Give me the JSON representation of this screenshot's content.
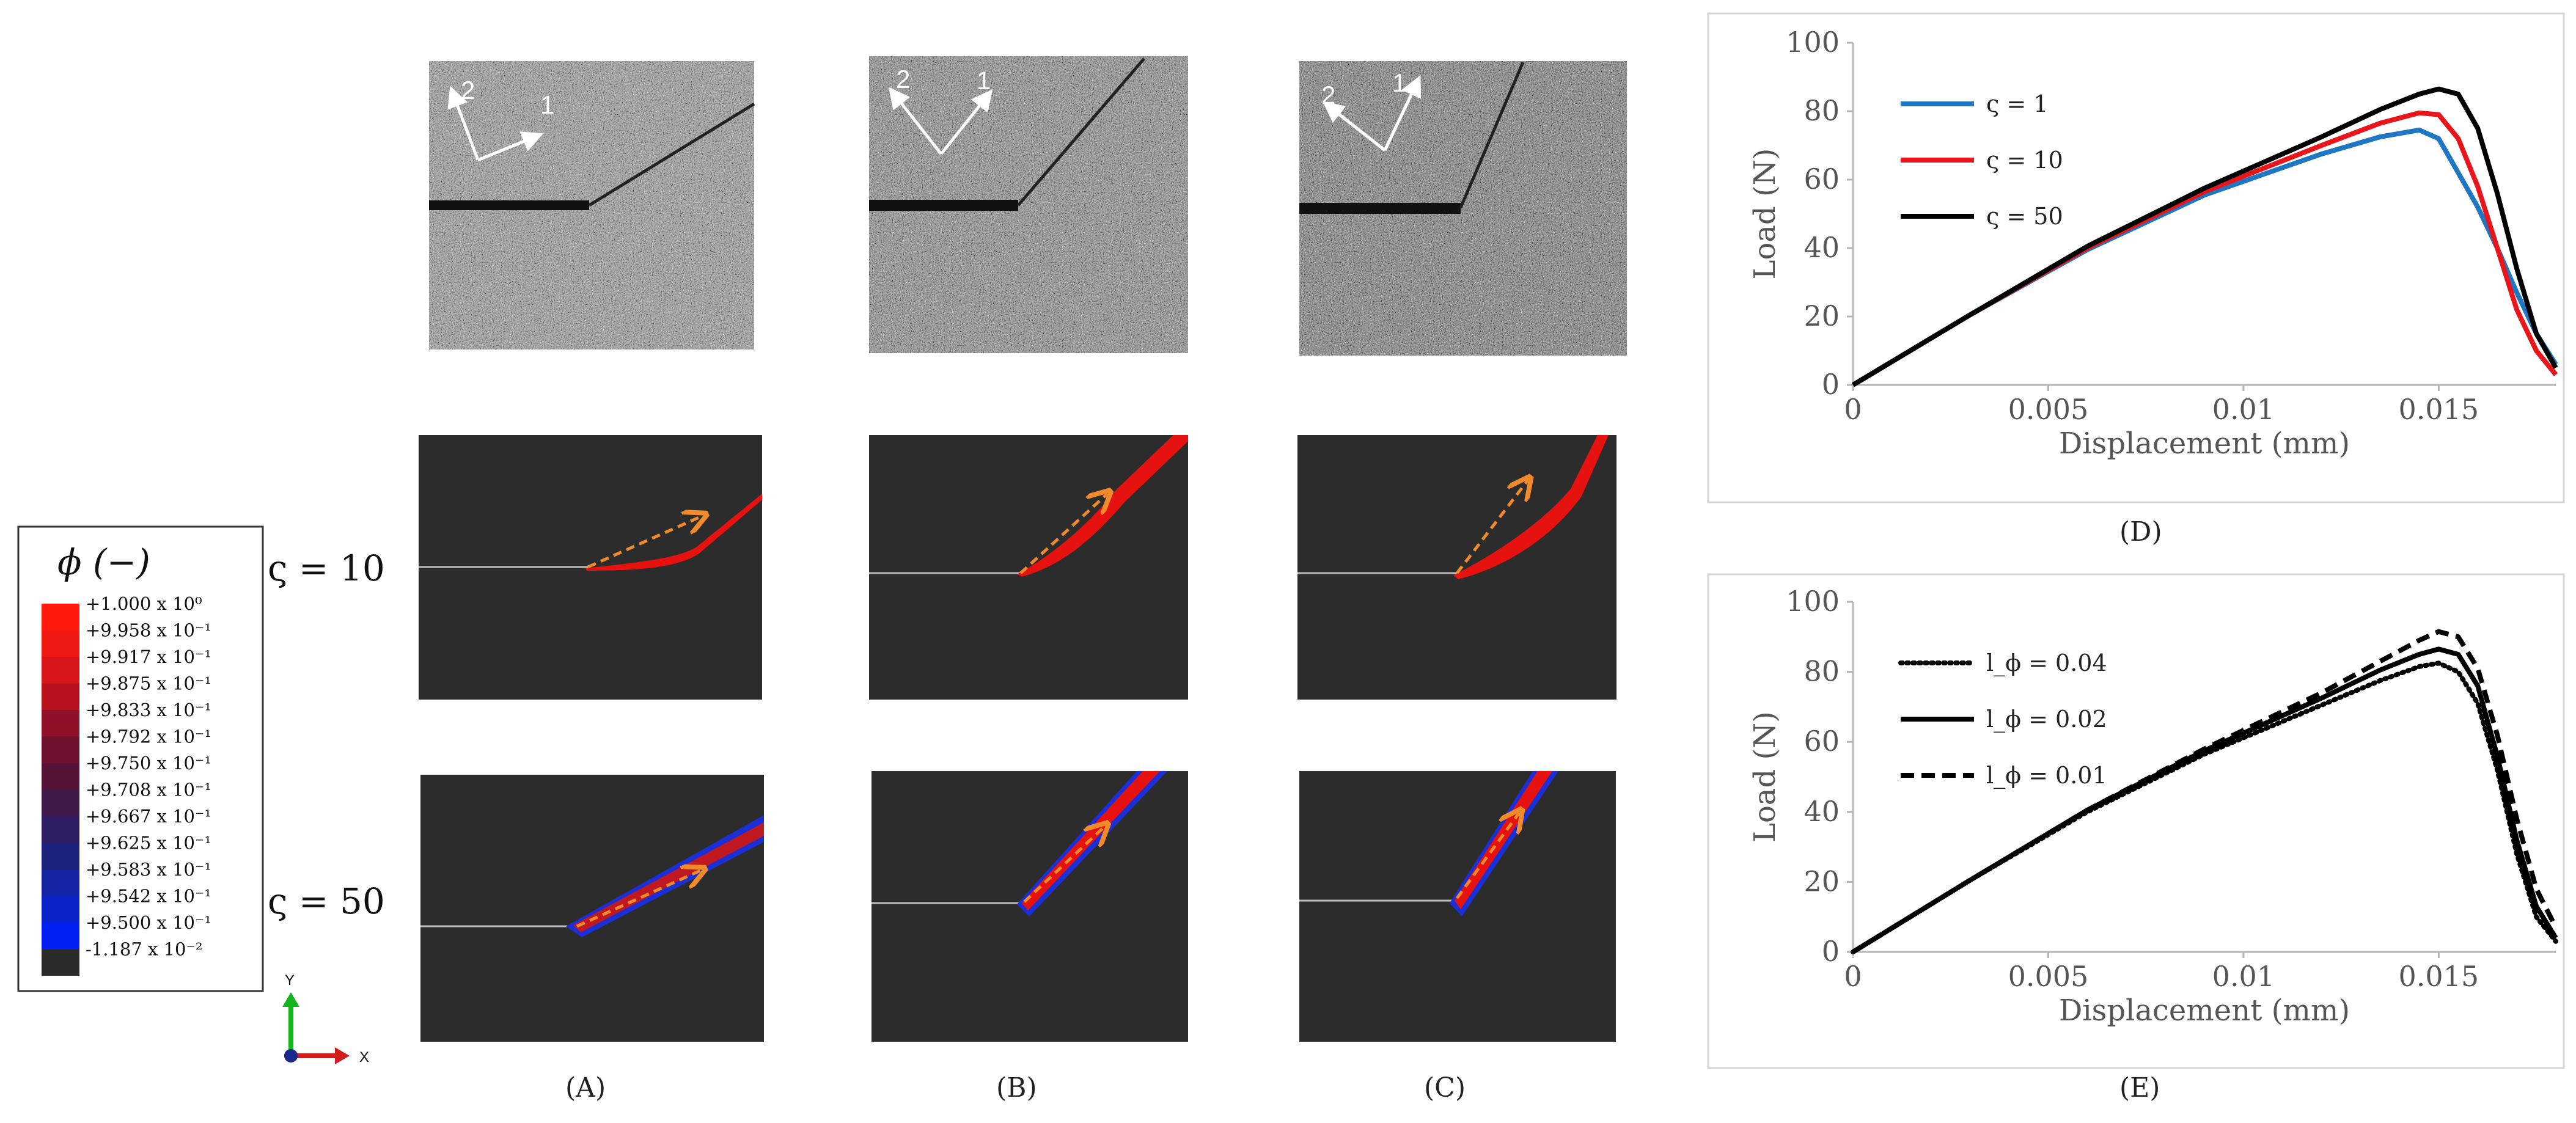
{
  "row_labels": {
    "r1": "ς = 10",
    "r2": "ς = 50"
  },
  "panel_labels": {
    "a": "(A)",
    "b": "(B)",
    "c": "(C)",
    "d": "(D)",
    "e": "(E)"
  },
  "photo_arrows": {
    "one": "1",
    "two": "2"
  },
  "colorbar": {
    "title": "ϕ (−)",
    "entries": [
      {
        "label": "+1.000 x 10⁰",
        "color": "#ff1a10"
      },
      {
        "label": "+9.958 x 10⁻¹",
        "color": "#f01813"
      },
      {
        "label": "+9.917 x 10⁻¹",
        "color": "#d8151a"
      },
      {
        "label": "+9.875 x 10⁻¹",
        "color": "#b8121f"
      },
      {
        "label": "+9.833 x 10⁻¹",
        "color": "#8f1028"
      },
      {
        "label": "+9.792 x 10⁻¹",
        "color": "#70112f"
      },
      {
        "label": "+9.750 x 10⁻¹",
        "color": "#551437"
      },
      {
        "label": "+9.708 x 10⁻¹",
        "color": "#3f1a4a"
      },
      {
        "label": "+9.667 x 10⁻¹",
        "color": "#2e1d63"
      },
      {
        "label": "+9.625 x 10⁻¹",
        "color": "#1f217f"
      },
      {
        "label": "+9.583 x 10⁻¹",
        "color": "#1423a4"
      },
      {
        "label": "+9.542 x 10⁻¹",
        "color": "#0a23c8"
      },
      {
        "label": "+9.500 x 10⁻¹",
        "color": "#0320f2"
      },
      {
        "label": "-1.187 x 10⁻²",
        "color": "#2b2b2b"
      }
    ]
  },
  "axes_triad": {
    "x": "X",
    "y": "Y"
  },
  "chart_data": [
    {
      "type": "line",
      "xlabel": "Displacement (mm)",
      "ylabel": "Load (N)",
      "xlim": [
        0,
        0.018
      ],
      "ylim": [
        0,
        100
      ],
      "xticks": [
        0,
        0.005,
        0.01,
        0.015
      ],
      "xtick_labels": [
        "0",
        "0.005",
        "0.01",
        "0.015"
      ],
      "yticks": [
        0,
        20,
        40,
        60,
        80,
        100
      ],
      "ytick_labels": [
        "0",
        "20",
        "40",
        "60",
        "80",
        "100"
      ],
      "legend_position": "top-left",
      "series": [
        {
          "name": "ς = 1",
          "color": "#1f77c4",
          "dash": "solid",
          "x": [
            0,
            0.003,
            0.006,
            0.009,
            0.012,
            0.0135,
            0.0145,
            0.015,
            0.0155,
            0.016,
            0.0165,
            0.017,
            0.0175,
            0.018
          ],
          "y": [
            0,
            20.5,
            39.5,
            55.5,
            67.5,
            72.5,
            74.5,
            72,
            62,
            52,
            40,
            27,
            15,
            6
          ]
        },
        {
          "name": "ς = 10",
          "color": "#e8161b",
          "dash": "solid",
          "x": [
            0,
            0.003,
            0.006,
            0.009,
            0.012,
            0.0135,
            0.0145,
            0.015,
            0.0155,
            0.016,
            0.0165,
            0.017,
            0.0175,
            0.018
          ],
          "y": [
            0,
            20.5,
            40,
            56.5,
            70,
            76.5,
            79.5,
            79,
            72,
            58,
            40,
            22,
            10,
            3
          ]
        },
        {
          "name": "ς = 50",
          "color": "#000000",
          "dash": "solid",
          "x": [
            0,
            0.003,
            0.006,
            0.009,
            0.012,
            0.0135,
            0.0145,
            0.015,
            0.0155,
            0.016,
            0.0165,
            0.017,
            0.0175,
            0.018
          ],
          "y": [
            0,
            20.5,
            40.5,
            57.5,
            72.5,
            80.5,
            85,
            86.5,
            85,
            75,
            56,
            34,
            15,
            5
          ]
        }
      ]
    },
    {
      "type": "line",
      "xlabel": "Displacement (mm)",
      "ylabel": "Load (N)",
      "xlim": [
        0,
        0.018
      ],
      "ylim": [
        0,
        100
      ],
      "xticks": [
        0,
        0.005,
        0.01,
        0.015
      ],
      "xtick_labels": [
        "0",
        "0.005",
        "0.01",
        "0.015"
      ],
      "yticks": [
        0,
        20,
        40,
        60,
        80,
        100
      ],
      "ytick_labels": [
        "0",
        "20",
        "40",
        "60",
        "80",
        "100"
      ],
      "legend_position": "top-left",
      "series": [
        {
          "name": "l_ϕ = 0.04",
          "color": "#000000",
          "dash": "dotted",
          "x": [
            0,
            0.003,
            0.006,
            0.009,
            0.012,
            0.0135,
            0.0145,
            0.015,
            0.0155,
            0.016,
            0.0165,
            0.017,
            0.0175,
            0.018
          ],
          "y": [
            0,
            20.5,
            40,
            56.5,
            70.5,
            77.5,
            81.5,
            82.5,
            80,
            71,
            52,
            28,
            10,
            3
          ]
        },
        {
          "name": "l_ϕ = 0.02",
          "color": "#000000",
          "dash": "solid",
          "x": [
            0,
            0.003,
            0.006,
            0.009,
            0.012,
            0.0135,
            0.0145,
            0.015,
            0.0155,
            0.016,
            0.0165,
            0.017,
            0.0175,
            0.018
          ],
          "y": [
            0,
            20.5,
            40.5,
            57.5,
            72.5,
            80.5,
            85,
            86.5,
            85,
            76,
            56,
            32,
            13,
            4
          ]
        },
        {
          "name": "l_ϕ = 0.01",
          "color": "#000000",
          "dash": "dashed",
          "x": [
            0,
            0.003,
            0.006,
            0.009,
            0.012,
            0.0135,
            0.0145,
            0.015,
            0.0155,
            0.016,
            0.0165,
            0.017,
            0.0175,
            0.018
          ],
          "y": [
            0,
            20.5,
            40.5,
            58,
            74,
            83,
            89,
            91.5,
            90,
            81,
            62,
            38,
            18,
            7
          ]
        }
      ]
    }
  ]
}
